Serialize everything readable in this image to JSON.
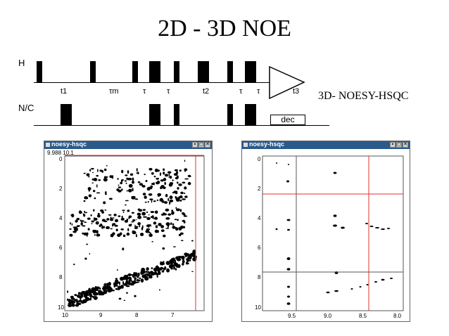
{
  "title": "2D - 3D NOE",
  "pulse_sequence": {
    "channels": [
      "H",
      "N/C"
    ],
    "delay_labels": [
      "t1",
      "τm",
      "τ",
      "τ",
      "t2",
      "τ",
      "τ",
      "t3"
    ],
    "decoupling_label": "dec",
    "experiment_label": "3D- NOESY-HSQC"
  },
  "spectra": [
    {
      "window_title": "noesy-hsqc",
      "coordinate_readout": "9.988  10.1",
      "x_ticks": [
        "10",
        "9",
        "8",
        "7"
      ],
      "y_ticks": [
        "0",
        "2",
        "4",
        "6",
        "8",
        "10"
      ],
      "cursor_color": "#e03030"
    },
    {
      "window_title": "noesy-hsqc",
      "coordinate_readout": "",
      "x_ticks": [
        "9.5",
        "9.0",
        "8.5",
        "8.0"
      ],
      "y_ticks": [
        "0",
        "2",
        "4",
        "6",
        "8",
        "10"
      ],
      "cursor_color": "#e03030"
    }
  ],
  "window_buttons": [
    "▪",
    "◻",
    "✕"
  ],
  "colors": {
    "titlebar": "#2a5a8a",
    "cursor": "#e03030"
  }
}
